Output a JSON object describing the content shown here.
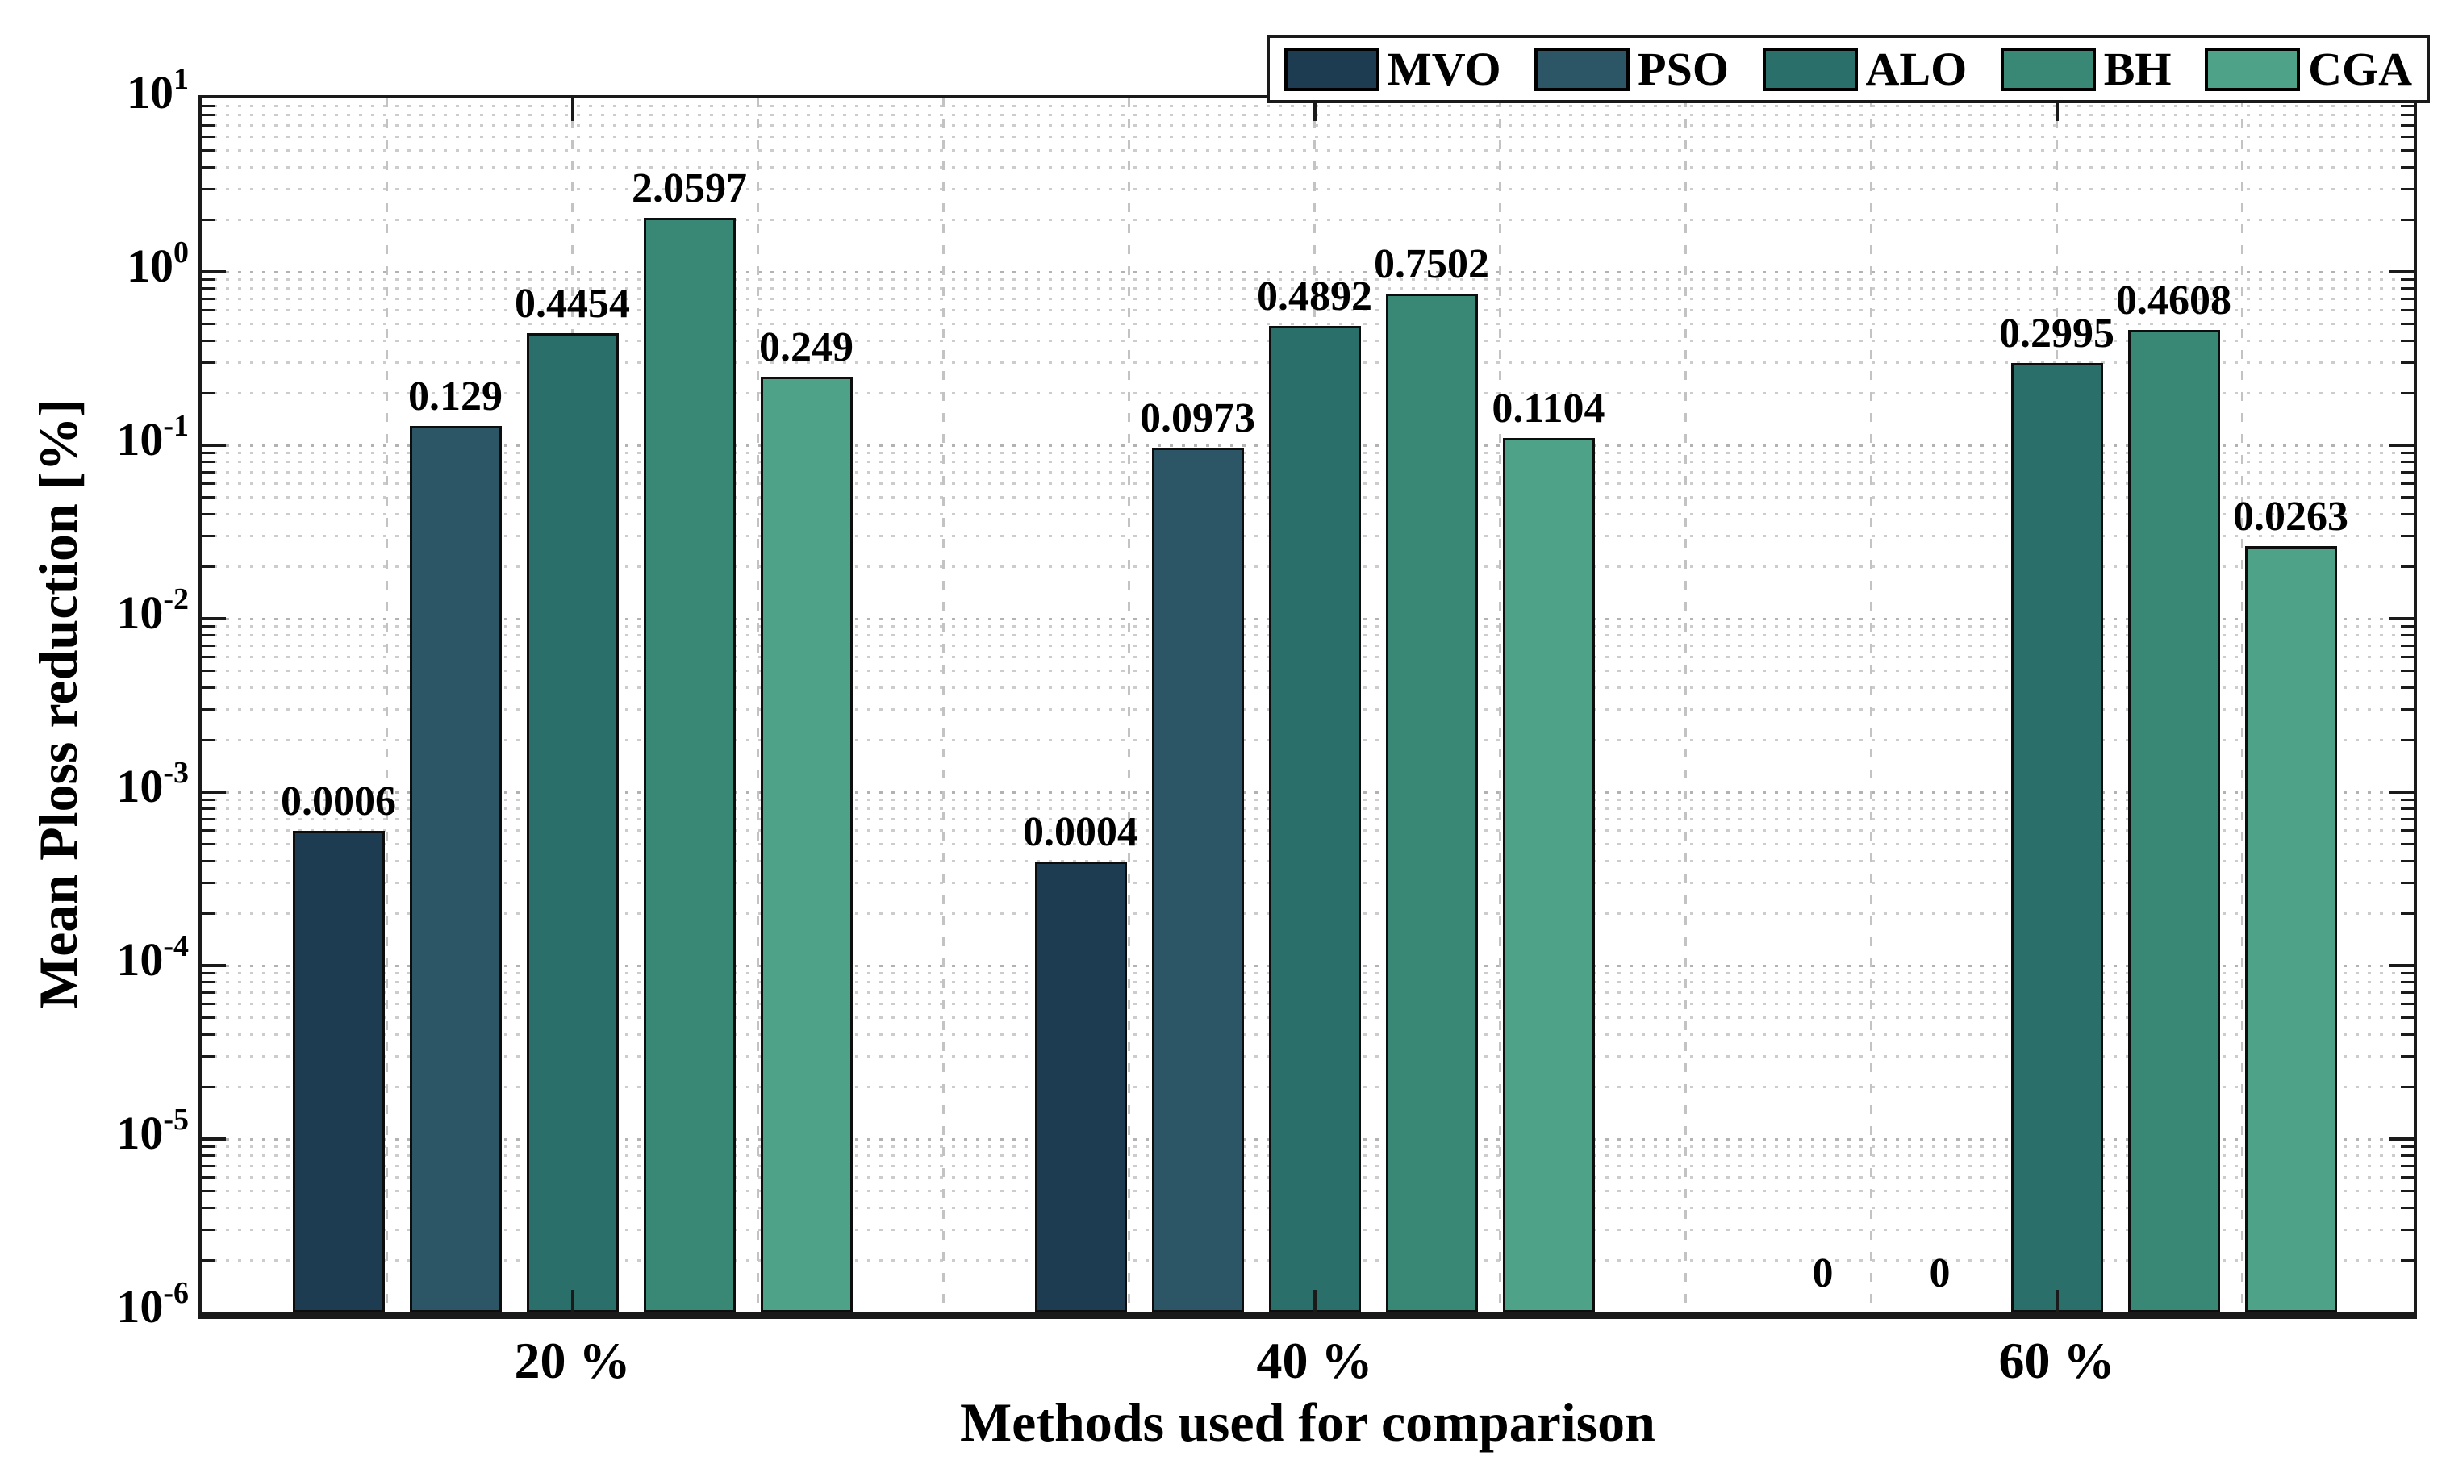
{
  "chart_data": {
    "type": "bar",
    "y_scale": "log",
    "title": "",
    "xlabel": "Methods used for comparison",
    "ylabel": "Mean Ploss reduction [%]",
    "categories": [
      "20 %",
      "40 %",
      "60 %"
    ],
    "series": [
      {
        "name": "MVO",
        "color": "#1d3c51",
        "values": [
          0.0006,
          0.0004,
          0
        ]
      },
      {
        "name": "PSO",
        "color": "#2c5566",
        "values": [
          0.129,
          0.0973,
          0
        ]
      },
      {
        "name": "ALO",
        "color": "#2b6f6a",
        "values": [
          0.4454,
          0.4892,
          0.2995
        ]
      },
      {
        "name": "BH",
        "color": "#398775",
        "values": [
          2.0597,
          0.7502,
          0.4608
        ]
      },
      {
        "name": "CGA",
        "color": "#4ea287",
        "values": [
          0.249,
          0.1104,
          0.0263
        ]
      }
    ],
    "value_labels": [
      [
        "0.0006",
        "0.129",
        "0.4454",
        "2.0597",
        "0.249"
      ],
      [
        "0.0004",
        "0.0973",
        "0.4892",
        "0.7502",
        "0.1104"
      ],
      [
        "0",
        "0",
        "0.2995",
        "0.4608",
        "0.0263"
      ]
    ],
    "ylim": [
      1e-06,
      10
    ],
    "ytick_exponents": [
      "1",
      "0",
      "-1",
      "-2",
      "-3",
      "-4",
      "-5",
      "-6"
    ],
    "legend": {
      "entries": [
        "MVO",
        "PSO",
        "ALO",
        "BH",
        "CGA"
      ],
      "position": "top-right"
    },
    "grid": {
      "y_major": true,
      "y_minor": true,
      "x_minor": true,
      "style": "dotted"
    }
  }
}
